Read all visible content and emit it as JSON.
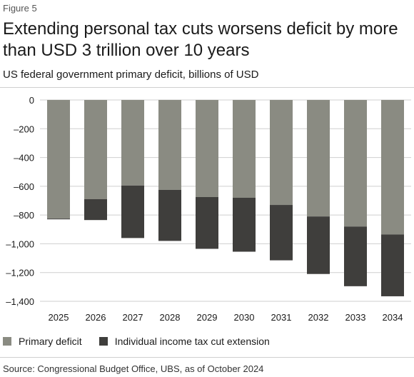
{
  "figure_label": "Figure 5",
  "title": "Extending personal tax cuts worsens deficit by more than USD 3 trillion over 10 years",
  "subtitle": "US federal government primary deficit, billions of USD",
  "source": "Source: Congressional Budget Office, UBS, as of October 2024",
  "colors": {
    "primary": "#8a8b82",
    "extension": "#3f3e3c"
  },
  "chart_data": {
    "type": "bar",
    "stacked": true,
    "categories": [
      "2025",
      "2026",
      "2027",
      "2028",
      "2029",
      "2030",
      "2031",
      "2032",
      "2033",
      "2034"
    ],
    "series": [
      {
        "name": "Primary deficit",
        "values": [
          -825,
          -690,
          -595,
          -625,
          -675,
          -680,
          -730,
          -810,
          -880,
          -935
        ]
      },
      {
        "name": "Individual income tax cut extension",
        "values": [
          -5,
          -145,
          -365,
          -355,
          -360,
          -375,
          -385,
          -400,
          -415,
          -430
        ]
      }
    ],
    "yticks": [
      0,
      -200,
      -400,
      -600,
      -800,
      -1000,
      -1200,
      -1400
    ],
    "ytick_labels": [
      "0",
      "–200",
      "–400",
      "–600",
      "–800",
      "–1,000",
      "–1,200",
      "–1,400"
    ],
    "ylim": [
      -1400,
      0
    ],
    "grid": true,
    "legend_position": "bottom-left"
  }
}
